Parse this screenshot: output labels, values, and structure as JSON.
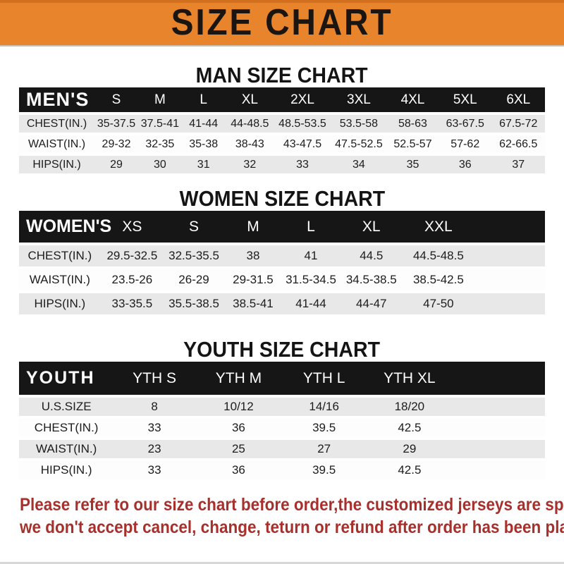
{
  "banner": {
    "title": "SIZE CHART"
  },
  "colors": {
    "banner_bg": "#E8842B",
    "header_bar_bg": "#161616",
    "header_bar_text": "#ffffff",
    "row_alt_bg": "#e8e8e8",
    "row_bg": "#fdfdfd",
    "footer_text": "#a8302c"
  },
  "sections": {
    "men": {
      "heading": "MAN SIZE CHART",
      "label": "MEN'S",
      "sizes": [
        "S",
        "M",
        "L",
        "XL",
        "2XL",
        "3XL",
        "4XL",
        "5XL",
        "6XL"
      ],
      "rows": [
        {
          "label": "CHEST(IN.)",
          "values": [
            "35-37.5",
            "37.5-41",
            "41-44",
            "44-48.5",
            "48.5-53.5",
            "53.5-58",
            "58-63",
            "63-67.5",
            "67.5-72"
          ]
        },
        {
          "label": "WAIST(IN.)",
          "values": [
            "29-32",
            "32-35",
            "35-38",
            "38-43",
            "43-47.5",
            "47.5-52.5",
            "52.5-57",
            "57-62",
            "62-66.5"
          ]
        },
        {
          "label": "HIPS(IN.)",
          "values": [
            "29",
            "30",
            "31",
            "32",
            "33",
            "34",
            "35",
            "36",
            "37"
          ]
        }
      ]
    },
    "women": {
      "heading": "WOMEN SIZE CHART",
      "label": "WOMEN'S",
      "sizes": [
        "XS",
        "S",
        "M",
        "L",
        "XL",
        "XXL"
      ],
      "rows": [
        {
          "label": "CHEST(IN.)",
          "values": [
            "29.5-32.5",
            "32.5-35.5",
            "38",
            "41",
            "44.5",
            "44.5-48.5"
          ]
        },
        {
          "label": "WAIST(IN.)",
          "values": [
            "23.5-26",
            "26-29",
            "29-31.5",
            "31.5-34.5",
            "34.5-38.5",
            "38.5-42.5"
          ]
        },
        {
          "label": "HIPS(IN.)",
          "values": [
            "33-35.5",
            "35.5-38.5",
            "38.5-41",
            "41-44",
            "44-47",
            "47-50"
          ]
        }
      ]
    },
    "youth": {
      "heading": "YOUTH SIZE CHART",
      "label": "YOUTH",
      "sizes": [
        "YTH S",
        "YTH M",
        "YTH L",
        "YTH XL"
      ],
      "rows": [
        {
          "label": "U.S.SIZE",
          "values": [
            "8",
            "10/12",
            "14/16",
            "18/20"
          ]
        },
        {
          "label": "CHEST(IN.)",
          "values": [
            "33",
            "36",
            "39.5",
            "42.5"
          ]
        },
        {
          "label": "WAIST(IN.)",
          "values": [
            "23",
            "25",
            "27",
            "29"
          ]
        },
        {
          "label": "HIPS(IN.)",
          "values": [
            "33",
            "36",
            "39.5",
            "42.5"
          ]
        }
      ]
    }
  },
  "footer": {
    "line1": "Please refer to our size chart before order,the customized jerseys are special products,",
    "line2": "we don't accept cancel, change, teturn or refund after order has been placed!"
  }
}
